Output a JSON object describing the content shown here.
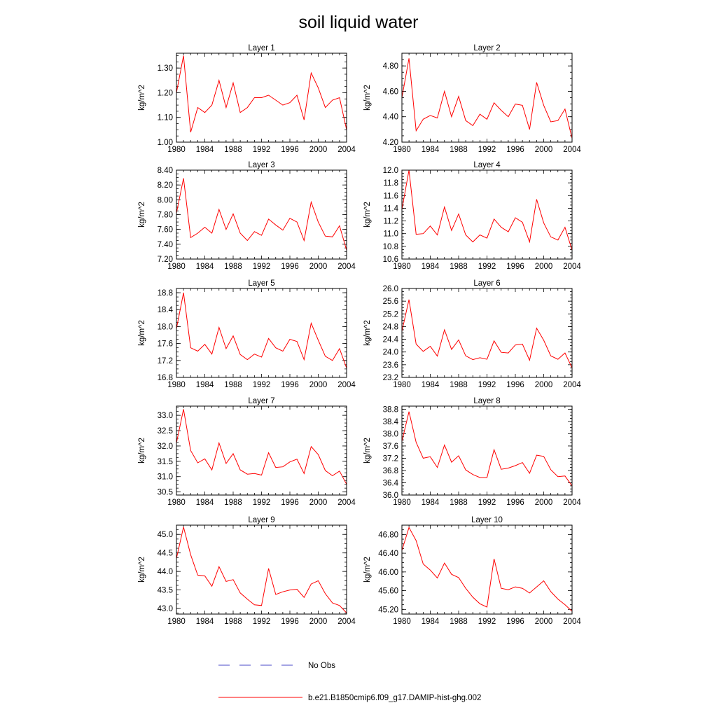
{
  "figure": {
    "title": "soil liquid water",
    "legend": [
      {
        "label": "No Obs",
        "color": "#4a4ac8",
        "dash": "dashed"
      },
      {
        "label": "b.e21.B1850cmip6.f09_g17.DAMIP-hist-ghg.002",
        "color": "#ff0000",
        "dash": "solid"
      }
    ]
  },
  "chart_data": [
    {
      "type": "line",
      "title": "Layer 1",
      "ylabel": "kg/m^2",
      "xlim": [
        1980,
        2004
      ],
      "ylim": [
        1.0,
        1.36
      ],
      "x_ticks": [
        "1980",
        "1984",
        "1988",
        "1992",
        "1996",
        "2000",
        "2004"
      ],
      "y_ticks": [
        "1.00",
        "1.10",
        "1.20",
        "1.30"
      ],
      "y_tick_values": [
        1.0,
        1.1,
        1.2,
        1.3
      ],
      "series": [
        {
          "name": "b.e21.B1850cmip6.f09_g17.DAMIP-hist-ghg.002",
          "color": "#ff0000",
          "x": [
            1980,
            1981,
            1982,
            1983,
            1984,
            1985,
            1986,
            1987,
            1988,
            1989,
            1990,
            1991,
            1992,
            1993,
            1994,
            1995,
            1996,
            1997,
            1998,
            1999,
            2000,
            2001,
            2002,
            2003,
            2004
          ],
          "y": [
            1.2,
            1.35,
            1.04,
            1.14,
            1.12,
            1.15,
            1.25,
            1.14,
            1.24,
            1.12,
            1.14,
            1.18,
            1.18,
            1.19,
            1.17,
            1.15,
            1.16,
            1.19,
            1.09,
            1.28,
            1.22,
            1.14,
            1.17,
            1.18,
            1.05
          ]
        }
      ]
    },
    {
      "type": "line",
      "title": "Layer 2",
      "ylabel": "kg/m^2",
      "xlim": [
        1980,
        2004
      ],
      "ylim": [
        4.2,
        4.9
      ],
      "x_ticks": [
        "1980",
        "1984",
        "1988",
        "1992",
        "1996",
        "2000",
        "2004"
      ],
      "y_ticks": [
        "4.20",
        "4.40",
        "4.60",
        "4.80"
      ],
      "y_tick_values": [
        4.2,
        4.4,
        4.6,
        4.8
      ],
      "series": [
        {
          "name": "b.e21.B1850cmip6.f09_g17.DAMIP-hist-ghg.002",
          "color": "#ff0000",
          "x": [
            1980,
            1981,
            1982,
            1983,
            1984,
            1985,
            1986,
            1987,
            1988,
            1989,
            1990,
            1991,
            1992,
            1993,
            1994,
            1995,
            1996,
            1997,
            1998,
            1999,
            2000,
            2001,
            2002,
            2003,
            2004
          ],
          "y": [
            4.55,
            4.86,
            4.29,
            4.38,
            4.41,
            4.39,
            4.6,
            4.4,
            4.56,
            4.37,
            4.33,
            4.42,
            4.38,
            4.51,
            4.45,
            4.4,
            4.5,
            4.49,
            4.3,
            4.67,
            4.49,
            4.36,
            4.37,
            4.46,
            4.23
          ]
        }
      ]
    },
    {
      "type": "line",
      "title": "Layer 3",
      "ylabel": "kg/m^2",
      "xlim": [
        1980,
        2004
      ],
      "ylim": [
        7.2,
        8.4
      ],
      "x_ticks": [
        "1980",
        "1984",
        "1988",
        "1992",
        "1996",
        "2000",
        "2004"
      ],
      "y_ticks": [
        "7.20",
        "7.40",
        "7.60",
        "7.80",
        "8.00",
        "8.20",
        "8.40"
      ],
      "y_tick_values": [
        7.2,
        7.4,
        7.6,
        7.8,
        8.0,
        8.2,
        8.4
      ],
      "series": [
        {
          "name": "b.e21.B1850cmip6.f09_g17.DAMIP-hist-ghg.002",
          "color": "#ff0000",
          "x": [
            1980,
            1981,
            1982,
            1983,
            1984,
            1985,
            1986,
            1987,
            1988,
            1989,
            1990,
            1991,
            1992,
            1993,
            1994,
            1995,
            1996,
            1997,
            1998,
            1999,
            2000,
            2001,
            2002,
            2003,
            2004
          ],
          "y": [
            7.82,
            8.29,
            7.49,
            7.55,
            7.63,
            7.55,
            7.87,
            7.6,
            7.81,
            7.55,
            7.45,
            7.57,
            7.52,
            7.74,
            7.66,
            7.59,
            7.75,
            7.7,
            7.45,
            7.97,
            7.7,
            7.51,
            7.5,
            7.65,
            7.32
          ]
        }
      ]
    },
    {
      "type": "line",
      "title": "Layer 4",
      "ylabel": "kg/m^2",
      "xlim": [
        1980,
        2004
      ],
      "ylim": [
        10.6,
        12.0
      ],
      "x_ticks": [
        "1980",
        "1984",
        "1988",
        "1992",
        "1996",
        "2000",
        "2004"
      ],
      "y_ticks": [
        "10.6",
        "10.8",
        "11.0",
        "11.2",
        "11.4",
        "11.6",
        "11.8",
        "12.0"
      ],
      "y_tick_values": [
        10.6,
        10.8,
        11.0,
        11.2,
        11.4,
        11.6,
        11.8,
        12.0
      ],
      "series": [
        {
          "name": "b.e21.B1850cmip6.f09_g17.DAMIP-hist-ghg.002",
          "color": "#ff0000",
          "x": [
            1980,
            1981,
            1982,
            1983,
            1984,
            1985,
            1986,
            1987,
            1988,
            1989,
            1990,
            1991,
            1992,
            1993,
            1994,
            1995,
            1996,
            1997,
            1998,
            1999,
            2000,
            2001,
            2002,
            2003,
            2004
          ],
          "y": [
            11.38,
            12.0,
            10.99,
            11.0,
            11.12,
            10.98,
            11.42,
            11.05,
            11.31,
            10.98,
            10.87,
            10.98,
            10.93,
            11.23,
            11.1,
            11.03,
            11.25,
            11.18,
            10.87,
            11.54,
            11.17,
            10.95,
            10.9,
            11.1,
            10.74
          ]
        }
      ]
    },
    {
      "type": "line",
      "title": "Layer 5",
      "ylabel": "kg/m^2",
      "xlim": [
        1980,
        2004
      ],
      "ylim": [
        16.8,
        18.9
      ],
      "x_ticks": [
        "1980",
        "1984",
        "1988",
        "1992",
        "1996",
        "2000",
        "2004"
      ],
      "y_ticks": [
        "16.8",
        "17.2",
        "17.6",
        "18.0",
        "18.4",
        "18.8"
      ],
      "y_tick_values": [
        16.8,
        17.2,
        17.6,
        18.0,
        18.4,
        18.8
      ],
      "series": [
        {
          "name": "b.e21.B1850cmip6.f09_g17.DAMIP-hist-ghg.002",
          "color": "#ff0000",
          "x": [
            1980,
            1981,
            1982,
            1983,
            1984,
            1985,
            1986,
            1987,
            1988,
            1989,
            1990,
            1991,
            1992,
            1993,
            1994,
            1995,
            1996,
            1997,
            1998,
            1999,
            2000,
            2001,
            2002,
            2003,
            2004
          ],
          "y": [
            17.95,
            18.8,
            17.5,
            17.42,
            17.58,
            17.35,
            17.98,
            17.48,
            17.78,
            17.34,
            17.22,
            17.35,
            17.28,
            17.72,
            17.5,
            17.42,
            17.7,
            17.65,
            17.22,
            18.08,
            17.68,
            17.3,
            17.2,
            17.48,
            17.02
          ]
        }
      ]
    },
    {
      "type": "line",
      "title": "Layer 6",
      "ylabel": "kg/m^2",
      "xlim": [
        1980,
        2004
      ],
      "ylim": [
        23.2,
        26.0
      ],
      "x_ticks": [
        "1980",
        "1984",
        "1988",
        "1992",
        "1996",
        "2000",
        "2004"
      ],
      "y_ticks": [
        "23.2",
        "23.6",
        "24.0",
        "24.4",
        "24.8",
        "25.2",
        "25.6",
        "26.0"
      ],
      "y_tick_values": [
        23.2,
        23.6,
        24.0,
        24.4,
        24.8,
        25.2,
        25.6,
        26.0
      ],
      "series": [
        {
          "name": "b.e21.B1850cmip6.f09_g17.DAMIP-hist-ghg.002",
          "color": "#ff0000",
          "x": [
            1980,
            1981,
            1982,
            1983,
            1984,
            1985,
            1986,
            1987,
            1988,
            1989,
            1990,
            1991,
            1992,
            1993,
            1994,
            1995,
            1996,
            1997,
            1998,
            1999,
            2000,
            2001,
            2002,
            2003,
            2004
          ],
          "y": [
            24.65,
            25.65,
            24.25,
            24.02,
            24.18,
            23.87,
            24.7,
            24.08,
            24.38,
            23.88,
            23.76,
            23.82,
            23.77,
            24.35,
            23.99,
            23.97,
            24.22,
            24.25,
            23.74,
            24.75,
            24.37,
            23.88,
            23.77,
            23.97,
            23.5
          ]
        }
      ]
    },
    {
      "type": "line",
      "title": "Layer 7",
      "ylabel": "kg/m^2",
      "xlim": [
        1980,
        2004
      ],
      "ylim": [
        30.4,
        33.3
      ],
      "x_ticks": [
        "1980",
        "1984",
        "1988",
        "1992",
        "1996",
        "2000",
        "2004"
      ],
      "y_ticks": [
        "30.5",
        "31.0",
        "31.5",
        "32.0",
        "32.5",
        "33.0"
      ],
      "y_tick_values": [
        30.5,
        31.0,
        31.5,
        32.0,
        32.5,
        33.0
      ],
      "series": [
        {
          "name": "b.e21.B1850cmip6.f09_g17.DAMIP-hist-ghg.002",
          "color": "#ff0000",
          "x": [
            1980,
            1981,
            1982,
            1983,
            1984,
            1985,
            1986,
            1987,
            1988,
            1989,
            1990,
            1991,
            1992,
            1993,
            1994,
            1995,
            1996,
            1997,
            1998,
            1999,
            2000,
            2001,
            2002,
            2003,
            2004
          ],
          "y": [
            32.1,
            33.2,
            31.85,
            31.45,
            31.58,
            31.22,
            32.1,
            31.43,
            31.75,
            31.22,
            31.08,
            31.1,
            31.05,
            31.78,
            31.3,
            31.32,
            31.48,
            31.57,
            31.1,
            31.98,
            31.72,
            31.2,
            31.03,
            31.18,
            30.75
          ]
        }
      ]
    },
    {
      "type": "line",
      "title": "Layer 8",
      "ylabel": "kg/m^2",
      "xlim": [
        1980,
        2004
      ],
      "ylim": [
        36.0,
        38.9
      ],
      "x_ticks": [
        "1980",
        "1984",
        "1988",
        "1992",
        "1996",
        "2000",
        "2004"
      ],
      "y_ticks": [
        "36.0",
        "36.4",
        "36.8",
        "37.2",
        "37.6",
        "38.0",
        "38.4",
        "38.8"
      ],
      "y_tick_values": [
        36.0,
        36.4,
        36.8,
        37.2,
        37.6,
        38.0,
        38.4,
        38.8
      ],
      "series": [
        {
          "name": "b.e21.B1850cmip6.f09_g17.DAMIP-hist-ghg.002",
          "color": "#ff0000",
          "x": [
            1980,
            1981,
            1982,
            1983,
            1984,
            1985,
            1986,
            1987,
            1988,
            1989,
            1990,
            1991,
            1992,
            1993,
            1994,
            1995,
            1996,
            1997,
            1998,
            1999,
            2000,
            2001,
            2002,
            2003,
            2004
          ],
          "y": [
            37.75,
            38.72,
            37.72,
            37.2,
            37.25,
            36.9,
            37.63,
            37.07,
            37.28,
            36.82,
            36.67,
            36.57,
            36.57,
            37.48,
            36.84,
            36.88,
            36.96,
            37.06,
            36.71,
            37.3,
            37.26,
            36.83,
            36.6,
            36.62,
            36.3
          ]
        }
      ]
    },
    {
      "type": "line",
      "title": "Layer 9",
      "ylabel": "kg/m^2",
      "xlim": [
        1980,
        2004
      ],
      "ylim": [
        42.85,
        45.25
      ],
      "x_ticks": [
        "1980",
        "1984",
        "1988",
        "1992",
        "1996",
        "2000",
        "2004"
      ],
      "y_ticks": [
        "43.0",
        "43.5",
        "44.0",
        "44.5",
        "45.0"
      ],
      "y_tick_values": [
        43.0,
        43.5,
        44.0,
        44.5,
        45.0
      ],
      "series": [
        {
          "name": "b.e21.B1850cmip6.f09_g17.DAMIP-hist-ghg.002",
          "color": "#ff0000",
          "x": [
            1980,
            1981,
            1982,
            1983,
            1984,
            1985,
            1986,
            1987,
            1988,
            1989,
            1990,
            1991,
            1992,
            1993,
            1994,
            1995,
            1996,
            1997,
            1998,
            1999,
            2000,
            2001,
            2002,
            2003,
            2004
          ],
          "y": [
            44.35,
            45.2,
            44.45,
            43.9,
            43.88,
            43.6,
            44.13,
            43.73,
            43.78,
            43.42,
            43.25,
            43.1,
            43.08,
            44.08,
            43.38,
            43.45,
            43.5,
            43.52,
            43.3,
            43.66,
            43.75,
            43.4,
            43.15,
            43.08,
            42.88
          ]
        }
      ]
    },
    {
      "type": "line",
      "title": "Layer 10",
      "ylabel": "kg/m^2",
      "xlim": [
        1980,
        2004
      ],
      "ylim": [
        45.1,
        47.0
      ],
      "x_ticks": [
        "1980",
        "1984",
        "1988",
        "1992",
        "1996",
        "2000",
        "2004"
      ],
      "y_ticks": [
        "45.20",
        "45.60",
        "46.00",
        "46.40",
        "46.80"
      ],
      "y_tick_values": [
        45.2,
        45.6,
        46.0,
        46.4,
        46.8
      ],
      "series": [
        {
          "name": "b.e21.B1850cmip6.f09_g17.DAMIP-hist-ghg.002",
          "color": "#ff0000",
          "x": [
            1980,
            1981,
            1982,
            1983,
            1984,
            1985,
            1986,
            1987,
            1988,
            1989,
            1990,
            1991,
            1992,
            1993,
            1994,
            1995,
            1996,
            1997,
            1998,
            1999,
            2000,
            2001,
            2002,
            2003,
            2004
          ],
          "y": [
            46.46,
            46.95,
            46.67,
            46.17,
            46.04,
            45.87,
            46.19,
            45.95,
            45.88,
            45.65,
            45.46,
            45.32,
            45.25,
            46.28,
            45.65,
            45.62,
            45.68,
            45.65,
            45.55,
            45.68,
            45.81,
            45.58,
            45.42,
            45.3,
            45.16
          ]
        }
      ]
    }
  ]
}
